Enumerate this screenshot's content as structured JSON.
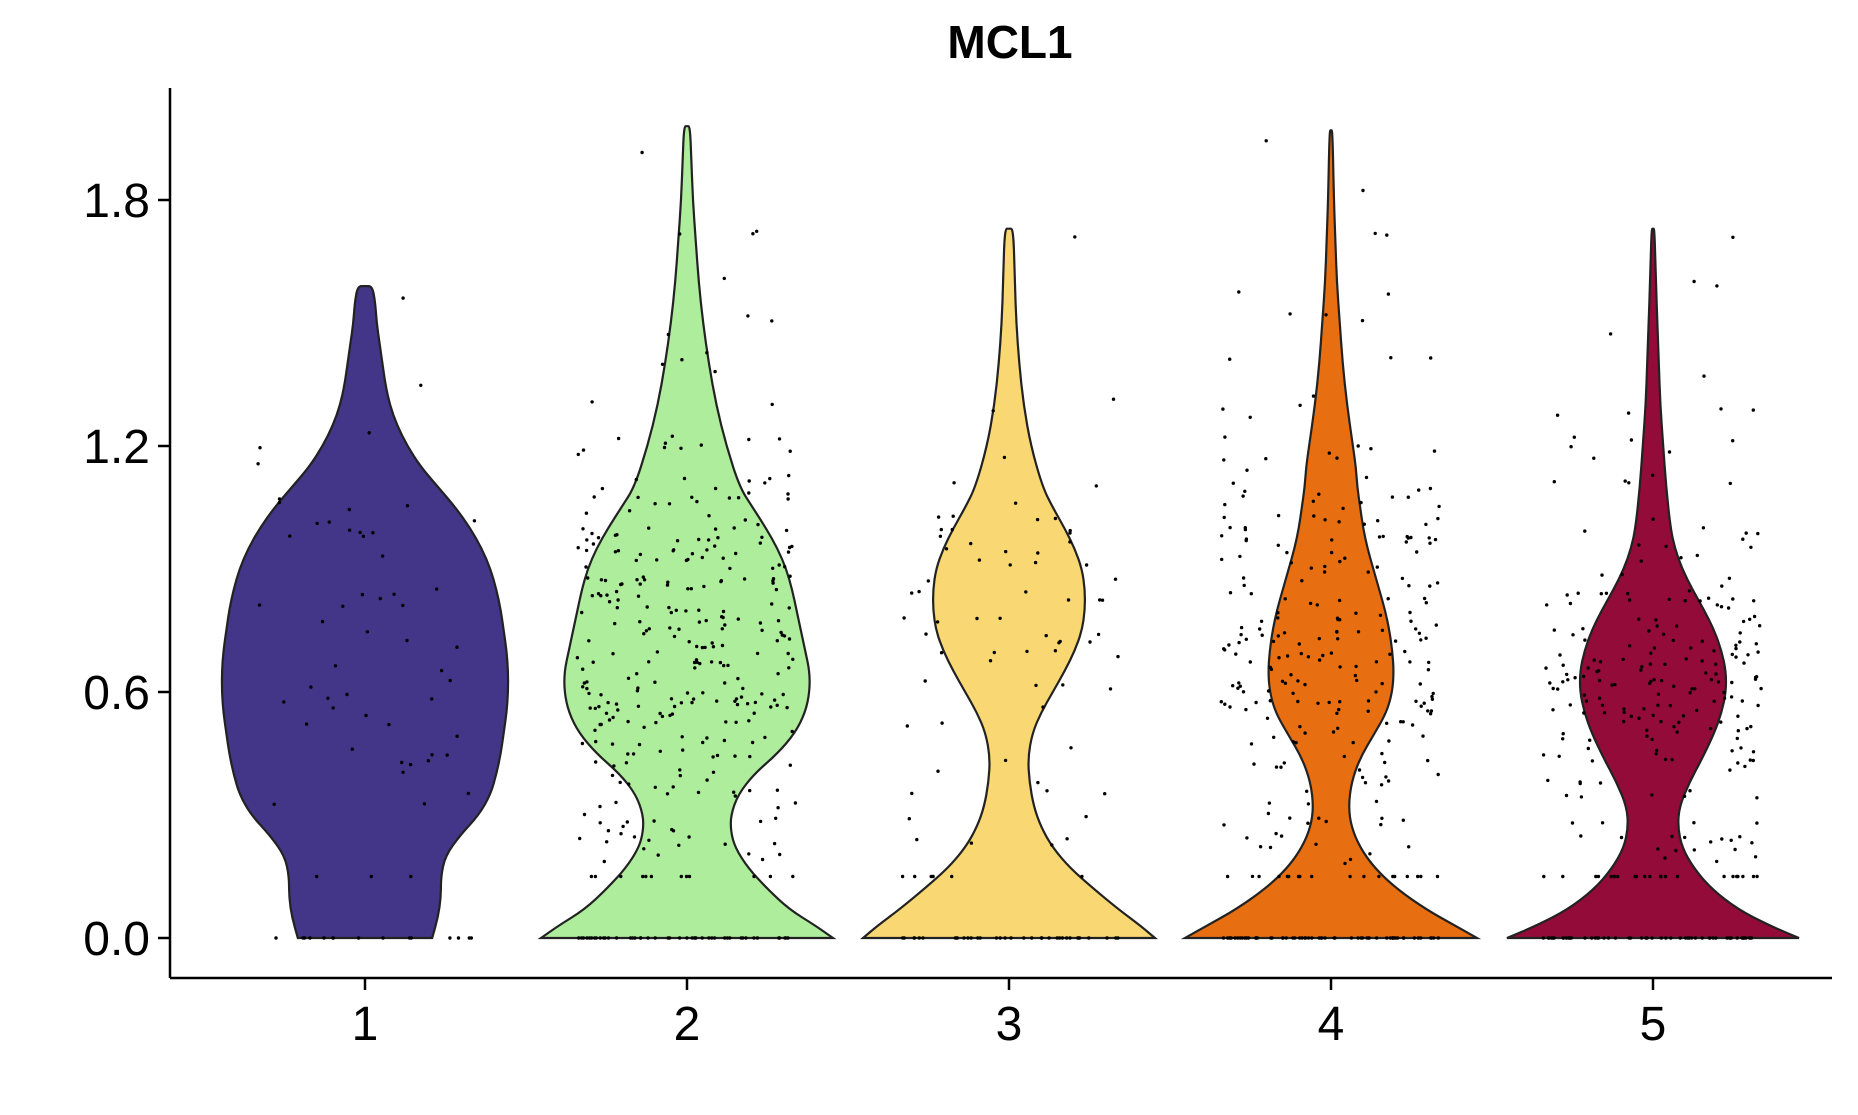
{
  "chart_data": {
    "type": "violin",
    "title": "MCL1",
    "xlabel": "",
    "ylabel": "",
    "categories": [
      "1",
      "2",
      "3",
      "4",
      "5"
    ],
    "ylim": [
      -0.1,
      2.0
    ],
    "yticks": [
      "0.0",
      "0.6",
      "1.2",
      "1.8"
    ],
    "ytick_values": [
      0.0,
      0.6,
      1.2,
      1.8
    ],
    "grid": false,
    "legend": "none",
    "series": [
      {
        "category": "1",
        "color": "#433587",
        "max": 1.59,
        "points": 55,
        "zero_points": 15,
        "density": [
          [
            0.0,
            0.46
          ],
          [
            0.05,
            0.5
          ],
          [
            0.1,
            0.52
          ],
          [
            0.15,
            0.52
          ],
          [
            0.2,
            0.55
          ],
          [
            0.25,
            0.65
          ],
          [
            0.3,
            0.78
          ],
          [
            0.35,
            0.86
          ],
          [
            0.4,
            0.9
          ],
          [
            0.45,
            0.93
          ],
          [
            0.5,
            0.95
          ],
          [
            0.55,
            0.97
          ],
          [
            0.6,
            0.98
          ],
          [
            0.65,
            0.98
          ],
          [
            0.7,
            0.97
          ],
          [
            0.75,
            0.95
          ],
          [
            0.8,
            0.93
          ],
          [
            0.85,
            0.9
          ],
          [
            0.9,
            0.86
          ],
          [
            0.95,
            0.8
          ],
          [
            1.0,
            0.72
          ],
          [
            1.05,
            0.62
          ],
          [
            1.1,
            0.5
          ],
          [
            1.15,
            0.38
          ],
          [
            1.2,
            0.29
          ],
          [
            1.25,
            0.22
          ],
          [
            1.3,
            0.17
          ],
          [
            1.35,
            0.14
          ],
          [
            1.4,
            0.12
          ],
          [
            1.45,
            0.1
          ],
          [
            1.5,
            0.08
          ],
          [
            1.55,
            0.07
          ],
          [
            1.59,
            0.05
          ]
        ]
      },
      {
        "category": "2",
        "color": "#ADED9B",
        "max": 1.98,
        "points": 320,
        "zero_points": 45,
        "density": [
          [
            0.0,
            1.0
          ],
          [
            0.03,
            0.88
          ],
          [
            0.07,
            0.7
          ],
          [
            0.12,
            0.55
          ],
          [
            0.17,
            0.42
          ],
          [
            0.22,
            0.33
          ],
          [
            0.26,
            0.3
          ],
          [
            0.3,
            0.3
          ],
          [
            0.35,
            0.35
          ],
          [
            0.4,
            0.46
          ],
          [
            0.45,
            0.62
          ],
          [
            0.5,
            0.74
          ],
          [
            0.55,
            0.81
          ],
          [
            0.6,
            0.84
          ],
          [
            0.65,
            0.84
          ],
          [
            0.7,
            0.81
          ],
          [
            0.75,
            0.78
          ],
          [
            0.8,
            0.75
          ],
          [
            0.85,
            0.72
          ],
          [
            0.9,
            0.68
          ],
          [
            0.95,
            0.62
          ],
          [
            1.0,
            0.54
          ],
          [
            1.05,
            0.45
          ],
          [
            1.1,
            0.36
          ],
          [
            1.2,
            0.27
          ],
          [
            1.3,
            0.2
          ],
          [
            1.4,
            0.15
          ],
          [
            1.5,
            0.11
          ],
          [
            1.6,
            0.08
          ],
          [
            1.7,
            0.06
          ],
          [
            1.8,
            0.04
          ],
          [
            1.9,
            0.03
          ],
          [
            1.98,
            0.02
          ]
        ]
      },
      {
        "category": "3",
        "color": "#F9D773",
        "max": 1.73,
        "points": 75,
        "zero_points": 35,
        "density": [
          [
            0.0,
            1.0
          ],
          [
            0.03,
            0.9
          ],
          [
            0.07,
            0.75
          ],
          [
            0.12,
            0.58
          ],
          [
            0.17,
            0.42
          ],
          [
            0.22,
            0.3
          ],
          [
            0.27,
            0.22
          ],
          [
            0.32,
            0.17
          ],
          [
            0.38,
            0.14
          ],
          [
            0.44,
            0.13
          ],
          [
            0.5,
            0.16
          ],
          [
            0.55,
            0.22
          ],
          [
            0.6,
            0.3
          ],
          [
            0.65,
            0.38
          ],
          [
            0.7,
            0.45
          ],
          [
            0.75,
            0.5
          ],
          [
            0.8,
            0.52
          ],
          [
            0.85,
            0.52
          ],
          [
            0.9,
            0.5
          ],
          [
            0.95,
            0.45
          ],
          [
            1.0,
            0.38
          ],
          [
            1.05,
            0.3
          ],
          [
            1.1,
            0.23
          ],
          [
            1.2,
            0.15
          ],
          [
            1.3,
            0.1
          ],
          [
            1.4,
            0.07
          ],
          [
            1.5,
            0.05
          ],
          [
            1.6,
            0.04
          ],
          [
            1.73,
            0.03
          ]
        ]
      },
      {
        "category": "4",
        "color": "#E76F12",
        "max": 1.97,
        "points": 260,
        "zero_points": 60,
        "density": [
          [
            0.0,
            1.0
          ],
          [
            0.03,
            0.85
          ],
          [
            0.07,
            0.65
          ],
          [
            0.12,
            0.45
          ],
          [
            0.17,
            0.3
          ],
          [
            0.22,
            0.2
          ],
          [
            0.27,
            0.14
          ],
          [
            0.32,
            0.12
          ],
          [
            0.38,
            0.14
          ],
          [
            0.44,
            0.2
          ],
          [
            0.5,
            0.3
          ],
          [
            0.55,
            0.38
          ],
          [
            0.6,
            0.42
          ],
          [
            0.65,
            0.43
          ],
          [
            0.7,
            0.42
          ],
          [
            0.75,
            0.4
          ],
          [
            0.8,
            0.37
          ],
          [
            0.85,
            0.33
          ],
          [
            0.9,
            0.29
          ],
          [
            0.95,
            0.25
          ],
          [
            1.0,
            0.22
          ],
          [
            1.05,
            0.2
          ],
          [
            1.1,
            0.18
          ],
          [
            1.15,
            0.17
          ],
          [
            1.2,
            0.15
          ],
          [
            1.3,
            0.11
          ],
          [
            1.4,
            0.08
          ],
          [
            1.5,
            0.06
          ],
          [
            1.6,
            0.04
          ],
          [
            1.7,
            0.03
          ],
          [
            1.8,
            0.02
          ],
          [
            1.97,
            0.01
          ]
        ]
      },
      {
        "category": "5",
        "color": "#930B38",
        "max": 1.73,
        "points": 240,
        "zero_points": 55,
        "density": [
          [
            0.0,
            1.0
          ],
          [
            0.03,
            0.8
          ],
          [
            0.07,
            0.58
          ],
          [
            0.12,
            0.4
          ],
          [
            0.17,
            0.28
          ],
          [
            0.22,
            0.2
          ],
          [
            0.27,
            0.17
          ],
          [
            0.32,
            0.18
          ],
          [
            0.38,
            0.25
          ],
          [
            0.44,
            0.34
          ],
          [
            0.5,
            0.42
          ],
          [
            0.55,
            0.47
          ],
          [
            0.6,
            0.5
          ],
          [
            0.65,
            0.5
          ],
          [
            0.7,
            0.47
          ],
          [
            0.75,
            0.42
          ],
          [
            0.8,
            0.35
          ],
          [
            0.85,
            0.27
          ],
          [
            0.9,
            0.2
          ],
          [
            0.95,
            0.15
          ],
          [
            1.0,
            0.12
          ],
          [
            1.1,
            0.09
          ],
          [
            1.2,
            0.07
          ],
          [
            1.3,
            0.05
          ],
          [
            1.4,
            0.04
          ],
          [
            1.5,
            0.03
          ],
          [
            1.6,
            0.02
          ],
          [
            1.73,
            0.01
          ]
        ]
      }
    ]
  }
}
